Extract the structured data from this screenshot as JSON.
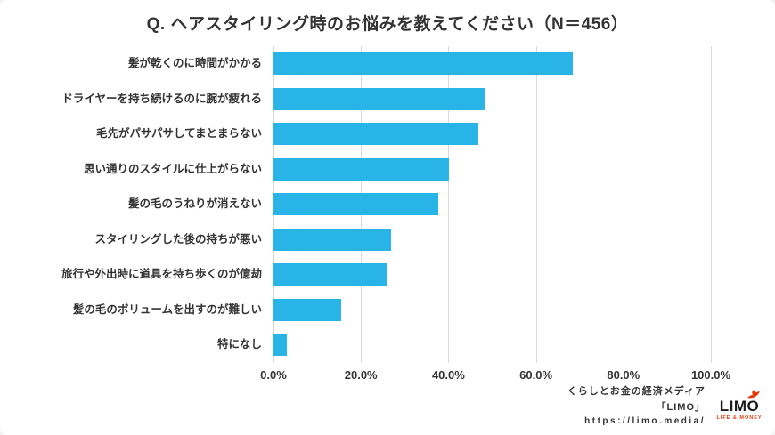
{
  "chart_data": {
    "type": "bar",
    "orientation": "horizontal",
    "title": "Q. ヘアスタイリング時のお悩みを教えてください（N＝456）",
    "categories": [
      "髪が乾くのに時間がかかる",
      "ドライヤーを持ち続けるのに腕が疲れる",
      "毛先がパサパサしてまとまらない",
      "思い通りのスタイルに仕上がらない",
      "髪の毛のうねりが消えない",
      "スタイリングした後の持ちが悪い",
      "旅行や外出時に道具を持ち歩くのが億劫",
      "髪の毛のボリュームを出すのが難しい",
      "特になし"
    ],
    "values": [
      68.4,
      48.5,
      46.9,
      40.1,
      37.7,
      26.8,
      25.9,
      15.4,
      3.1
    ],
    "x_ticks": [
      "0.0%",
      "20.0%",
      "40.0%",
      "60.0%",
      "80.0%",
      "100.0%"
    ],
    "xlim": [
      0,
      100
    ],
    "bar_color": "#29b4e8",
    "grid": true,
    "legend": "none",
    "xlabel": "",
    "ylabel": ""
  },
  "footer": {
    "credit_line1": "くらしとお金の経済メディア",
    "credit_line2": "「LIMO」",
    "url": "https://limo.media/",
    "logo_text": "LIMO",
    "logo_tagline": "LIFE & MONEY"
  }
}
